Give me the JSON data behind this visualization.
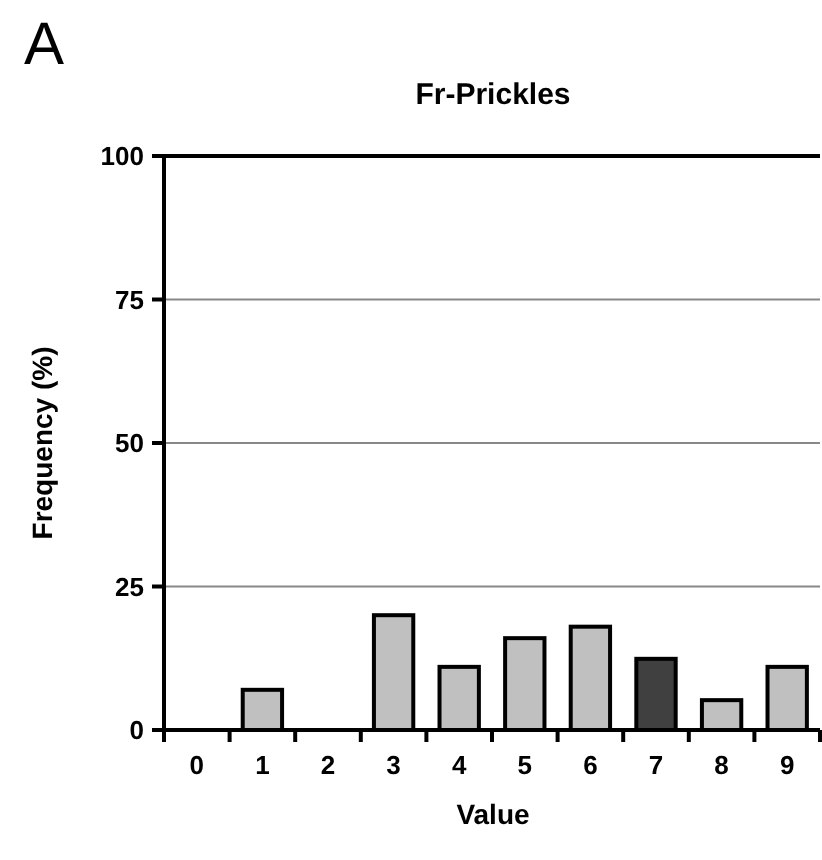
{
  "chart_data": {
    "type": "bar",
    "title": "Fr-Prickles",
    "xlabel": "Value",
    "ylabel": "Frequency (%)",
    "annotations": [
      "A"
    ],
    "categories": [
      "0",
      "1",
      "2",
      "3",
      "4",
      "5",
      "6",
      "7",
      "8",
      "9"
    ],
    "values": [
      0,
      7,
      0,
      20,
      11,
      16,
      18,
      12.4,
      5.2,
      11
    ],
    "colors": [
      "#c0c0c0",
      "#c0c0c0",
      "#c0c0c0",
      "#c0c0c0",
      "#c0c0c0",
      "#c0c0c0",
      "#c0c0c0",
      "#404040",
      "#c0c0c0",
      "#c0c0c0"
    ],
    "ylim": [
      0,
      100
    ],
    "yticks": [
      0,
      25,
      50,
      75,
      100
    ],
    "grid": "y"
  }
}
